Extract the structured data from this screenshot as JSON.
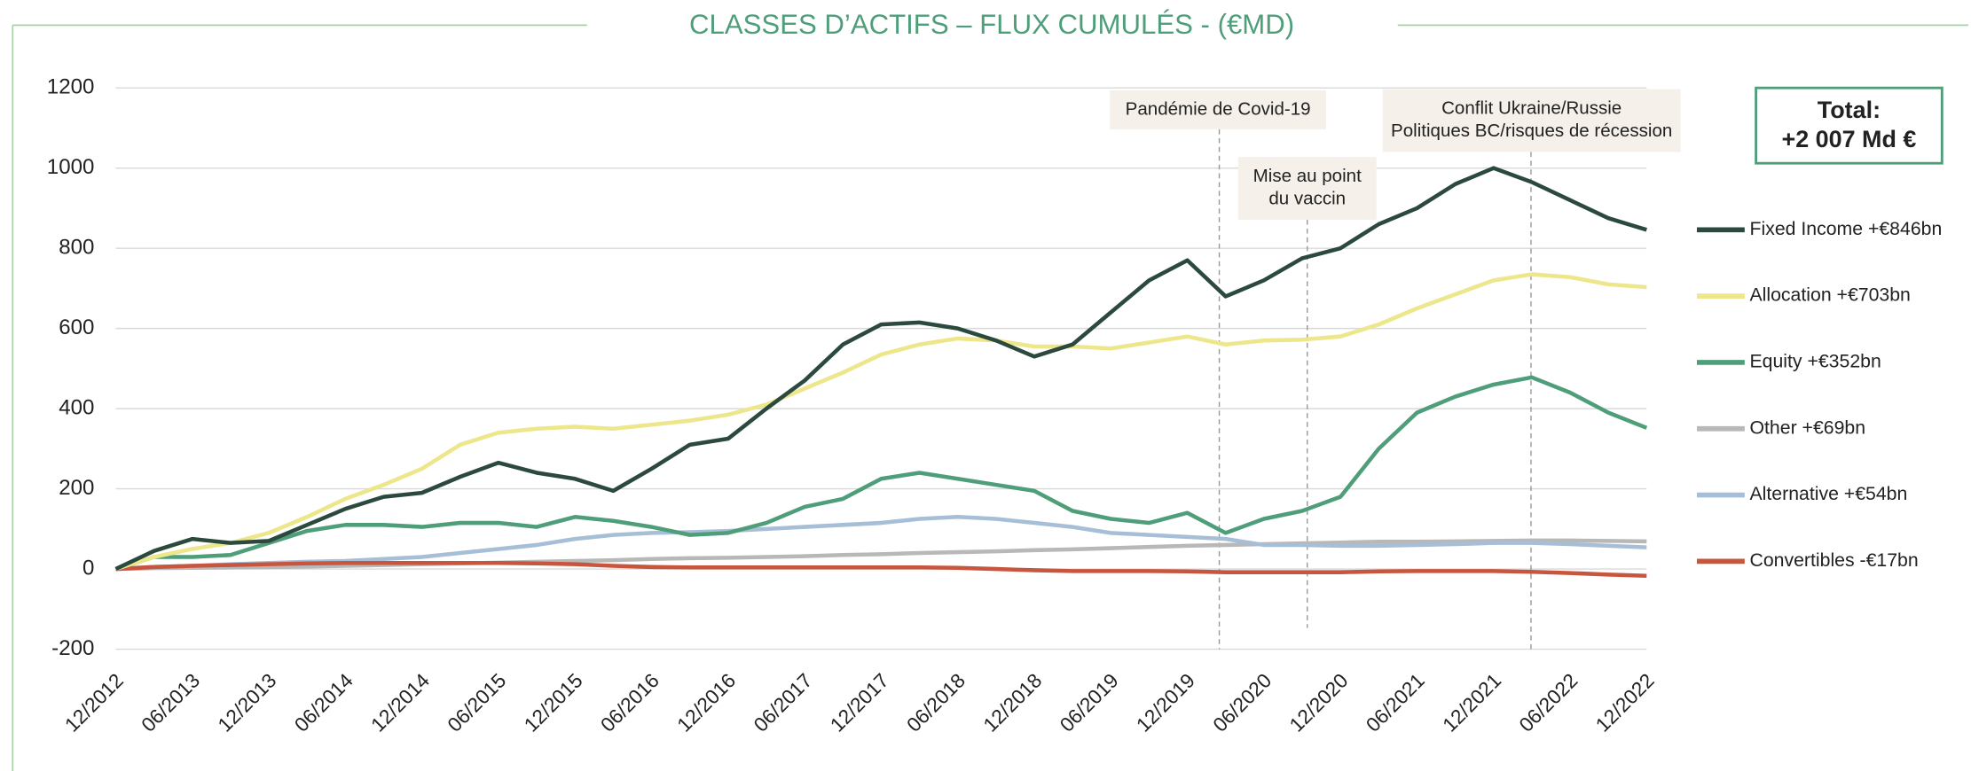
{
  "chart_data": {
    "type": "line",
    "title": "CLASSES D’ACTIFS – FLUX CUMULÉS - (€MD)",
    "categories": [
      "12/2012",
      null,
      "06/2013",
      null,
      "12/2013",
      null,
      "06/2014",
      null,
      "12/2014",
      null,
      "06/2015",
      null,
      "12/2015",
      null,
      "06/2016",
      null,
      "12/2016",
      null,
      "06/2017",
      null,
      "12/2017",
      null,
      "06/2018",
      null,
      "12/2018",
      null,
      "06/2019",
      null,
      "12/2019",
      null,
      "06/2020",
      null,
      "12/2020",
      null,
      "06/2021",
      null,
      "12/2021",
      null,
      "06/2022",
      null,
      "12/2022"
    ],
    "series": [
      {
        "name": "Fixed Income +€846bn",
        "color": "#2b4a3d",
        "values": [
          0,
          45,
          75,
          65,
          70,
          110,
          150,
          180,
          190,
          230,
          265,
          240,
          225,
          195,
          250,
          310,
          325,
          400,
          470,
          560,
          610,
          615,
          600,
          570,
          530,
          560,
          640,
          720,
          770,
          680,
          720,
          775,
          800,
          860,
          900,
          960,
          1000,
          965,
          920,
          875,
          846
        ]
      },
      {
        "name": "Allocation +€703bn",
        "color": "#ede68a",
        "values": [
          0,
          30,
          50,
          65,
          90,
          130,
          175,
          210,
          250,
          310,
          340,
          350,
          355,
          350,
          360,
          370,
          385,
          410,
          450,
          490,
          535,
          560,
          575,
          570,
          555,
          555,
          550,
          565,
          580,
          560,
          570,
          572,
          580,
          610,
          650,
          685,
          720,
          735,
          728,
          710,
          703
        ]
      },
      {
        "name": "Equity +€352bn",
        "color": "#4f9e7a",
        "values": [
          0,
          30,
          30,
          35,
          65,
          95,
          110,
          110,
          105,
          115,
          115,
          105,
          130,
          120,
          105,
          85,
          90,
          115,
          155,
          175,
          225,
          240,
          225,
          210,
          195,
          145,
          125,
          115,
          140,
          90,
          125,
          145,
          180,
          300,
          390,
          430,
          460,
          478,
          440,
          390,
          352
        ]
      },
      {
        "name": "Other +€69bn",
        "color": "#b8b8b8",
        "values": [
          0,
          2,
          3,
          4,
          5,
          6,
          8,
          10,
          12,
          14,
          16,
          18,
          20,
          22,
          25,
          27,
          28,
          30,
          32,
          35,
          37,
          40,
          42,
          44,
          47,
          49,
          52,
          55,
          58,
          60,
          62,
          64,
          66,
          68,
          68,
          69,
          70,
          71,
          71,
          70,
          69
        ]
      },
      {
        "name": "Alternative +€54bn",
        "color": "#a6bed6",
        "values": [
          0,
          5,
          8,
          12,
          15,
          18,
          20,
          25,
          30,
          40,
          50,
          60,
          75,
          85,
          90,
          92,
          95,
          100,
          105,
          110,
          115,
          125,
          130,
          125,
          115,
          105,
          90,
          85,
          80,
          75,
          60,
          60,
          58,
          58,
          60,
          62,
          65,
          65,
          62,
          58,
          54
        ]
      },
      {
        "name": "Convertibles -€17bn",
        "color": "#c8553d",
        "values": [
          0,
          5,
          8,
          10,
          12,
          14,
          15,
          15,
          15,
          15,
          15,
          14,
          12,
          8,
          5,
          4,
          4,
          4,
          4,
          4,
          4,
          4,
          3,
          0,
          -3,
          -5,
          -5,
          -5,
          -6,
          -8,
          -8,
          -8,
          -8,
          -6,
          -5,
          -5,
          -5,
          -7,
          -10,
          -14,
          -17
        ]
      }
    ],
    "ylim": [
      -200,
      1200
    ],
    "yticks": [
      -200,
      0,
      200,
      400,
      600,
      800,
      1000,
      1200
    ],
    "grid": true,
    "legend": "right",
    "annotations": [
      {
        "lines": [
          "Pandémie de Covid-19"
        ]
      },
      {
        "lines": [
          "Mise au point",
          "du vaccin"
        ]
      },
      {
        "lines": [
          "Conflit Ukraine/Russie",
          "Politiques BC/risques de récession"
        ]
      }
    ],
    "total": {
      "label": "Total:",
      "value": "+2 007 Md €"
    }
  }
}
